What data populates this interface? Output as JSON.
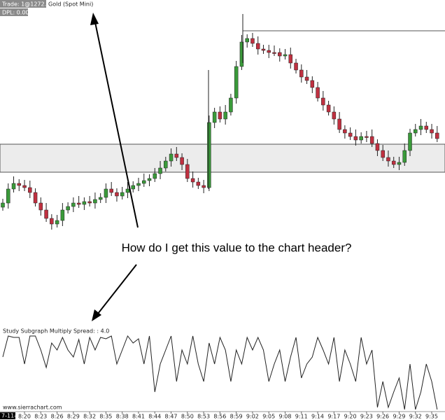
{
  "header": {
    "trade": "Trade: 1@1272.17",
    "symbol": "Gold (Spot Mini)",
    "dpl": "DPL: 0.00C"
  },
  "annotation": "How do I get this value to the chart header?",
  "study_label": "Study Subgraph Multiply  Spread: : 4.0",
  "watermark": "www.sierrachart.com",
  "date_label": "7-11-6",
  "time_labels": [
    "8:20",
    "8:23",
    "8:26",
    "8:29",
    "8:32",
    "8:35",
    "8:38",
    "8:41",
    "8:44",
    "8:47",
    "8:50",
    "8:53",
    "8:56",
    "8:59",
    "9:02",
    "9:05",
    "9:08",
    "9:11",
    "9:14",
    "9:17",
    "9:20",
    "9:23",
    "9:26",
    "9:29",
    "9:32",
    "9:35"
  ]
}
